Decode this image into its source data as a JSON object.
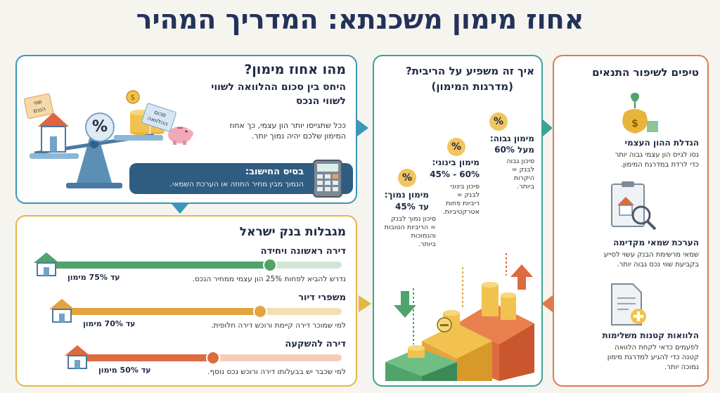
{
  "title": "אחוז מימון משכנתא: המדריך המהיר",
  "what": {
    "title": "מהו אחוז מימון?",
    "subtitle_1": "היחס בין סכום ההלוואה לשווי",
    "subtitle_2": "לשווי הנכס",
    "desc_1": "ככל שתגייסו יותר הון עצמי, כך אחוז",
    "desc_2": "המימון שלכם יהיה נמוך יותר.",
    "tag_property_1": "שווי",
    "tag_property_2": "הנכס",
    "tag_loan_1": "סכום",
    "tag_loan_2": "ההלוואה",
    "percent_symbol": "%",
    "calc_title": "בסיס החישוב:",
    "calc_text": "הנמוך מבין מחיר החוזה או הערכת השמאי."
  },
  "interest": {
    "title_1": "איך זה משפיע על הריבית?",
    "title_2": "(מדרגות המימון)",
    "high": {
      "title_1": "מימון גבוה:",
      "title_2": "מעל 60%",
      "desc": [
        "סיכון גבוה",
        "לבנק =",
        "היקרות",
        "ביותר."
      ]
    },
    "mid": {
      "title_1": "מימון בינוני:",
      "title_2": "60% - 45%",
      "desc": [
        "סיכון בינוני",
        "לבנק =",
        "ריביות פחות",
        "אטרקטיביות."
      ]
    },
    "low": {
      "title_1": "מימון נמוך:",
      "title_2": "עד 45%",
      "desc": [
        "סיכון נמוך לבנק",
        "= הריביות הטובות",
        "והנמוכות",
        "ביותר."
      ]
    }
  },
  "tips": {
    "title": "טיפים לשיפור התנאים",
    "items": [
      {
        "title": "הגדלת ההון העצמי",
        "desc": [
          "נסו לגייס הון עצמי גבוה יותר",
          "כדי לרדת במדרגת המימון."
        ]
      },
      {
        "title": "הערכת שמאי מקדימה",
        "desc": [
          "שמאי מרשימת הבנק עשוי לסייע",
          "בקביעת שווי נכס גבוה יותר."
        ]
      },
      {
        "title": "הלוואות קטנות משלימות",
        "desc": [
          "לפעמים כדאי לקחת הלוואה",
          "קטנה כדי להגיע למדרגת מימון",
          "נמוכה יותר."
        ]
      }
    ]
  },
  "limits": {
    "title": "מגבלות בנק ישראל",
    "rows": [
      {
        "title": "דירה ראשונה ויחידה",
        "badge": "עד 75% מימון",
        "desc": "נדרש להביא לפחות 25% הון עצמי ממחיר הנכס.",
        "value": 75,
        "color": "#4fa36b",
        "track": "#cfe6d6"
      },
      {
        "title": "משפרי דיור",
        "badge": "עד 70% מימון",
        "desc": "למי שמוכר דירה קיימת ורוכש דירה חלופית.",
        "value": 70,
        "color": "#e3a43e",
        "track": "#f4dfb5"
      },
      {
        "title": "דירה להשקעה",
        "badge": "עד 50% מימון",
        "desc": "למי שכבר יש בבעלותו דירה ורוכש נכס נוסף.",
        "value": 50,
        "color": "#dc6b3f",
        "track": "#f4cdb9"
      }
    ]
  }
}
